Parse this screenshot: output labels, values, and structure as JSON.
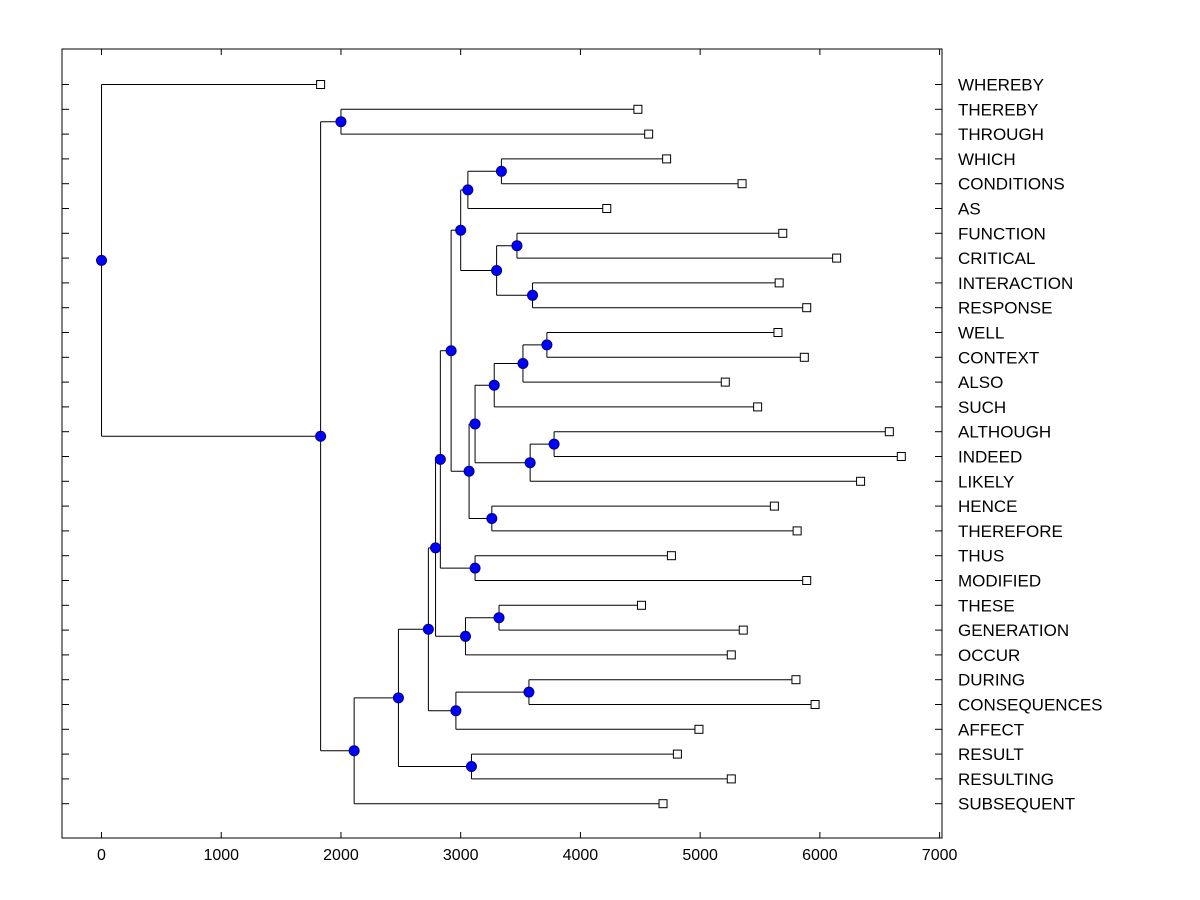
{
  "chart_data": {
    "type": "dendrogram",
    "title": "",
    "xlabel": "",
    "ylabel": "",
    "xlim": [
      -330,
      7020
    ],
    "x_ticks": [
      0,
      1000,
      2000,
      3000,
      4000,
      5000,
      6000,
      7000
    ],
    "x_tick_labels": [
      "0",
      "1000",
      "2000",
      "3000",
      "4000",
      "5000",
      "6000",
      "7000"
    ],
    "leaf_marker": "open-square",
    "node_marker": "blue-circle",
    "node_color": "#0000ff",
    "leaves": [
      {
        "label": "WHEREBY",
        "value": 1830
      },
      {
        "label": "THEREBY",
        "value": 4480
      },
      {
        "label": "THROUGH",
        "value": 4570
      },
      {
        "label": "WHICH",
        "value": 4720
      },
      {
        "label": "CONDITIONS",
        "value": 5350
      },
      {
        "label": "AS",
        "value": 4220
      },
      {
        "label": "FUNCTION",
        "value": 5690
      },
      {
        "label": "CRITICAL",
        "value": 6140
      },
      {
        "label": "INTERACTION",
        "value": 5660
      },
      {
        "label": "RESPONSE",
        "value": 5890
      },
      {
        "label": "WELL",
        "value": 5650
      },
      {
        "label": "CONTEXT",
        "value": 5870
      },
      {
        "label": "ALSO",
        "value": 5210
      },
      {
        "label": "SUCH",
        "value": 5480
      },
      {
        "label": "ALTHOUGH",
        "value": 6580
      },
      {
        "label": "INDEED",
        "value": 6680
      },
      {
        "label": "LIKELY",
        "value": 6340
      },
      {
        "label": "HENCE",
        "value": 5620
      },
      {
        "label": "THEREFORE",
        "value": 5810
      },
      {
        "label": "THUS",
        "value": 4760
      },
      {
        "label": "MODIFIED",
        "value": 5890
      },
      {
        "label": "THESE",
        "value": 4510
      },
      {
        "label": "GENERATION",
        "value": 5360
      },
      {
        "label": "OCCUR",
        "value": 5260
      },
      {
        "label": "DURING",
        "value": 5800
      },
      {
        "label": "CONSEQUENCES",
        "value": 5960
      },
      {
        "label": "AFFECT",
        "value": 4990
      },
      {
        "label": "RESULT",
        "value": 4810
      },
      {
        "label": "RESULTING",
        "value": 5260
      },
      {
        "label": "SUBSEQUENT",
        "value": 4690
      }
    ],
    "merges": [
      {
        "id": "n1",
        "value": 2000,
        "children": [
          "L1",
          "L2"
        ]
      },
      {
        "id": "n2",
        "value": 3340,
        "children": [
          "L3",
          "L4"
        ]
      },
      {
        "id": "n3",
        "value": 3060,
        "children": [
          "n2",
          "L5"
        ]
      },
      {
        "id": "n4",
        "value": 3470,
        "children": [
          "L6",
          "L7"
        ]
      },
      {
        "id": "n5",
        "value": 3600,
        "children": [
          "L8",
          "L9"
        ]
      },
      {
        "id": "n6",
        "value": 3300,
        "children": [
          "n4",
          "n5"
        ]
      },
      {
        "id": "n7",
        "value": 3000,
        "children": [
          "n3",
          "n6"
        ]
      },
      {
        "id": "n8",
        "value": 3720,
        "children": [
          "L10",
          "L11"
        ]
      },
      {
        "id": "n9",
        "value": 3520,
        "children": [
          "n8",
          "L12"
        ]
      },
      {
        "id": "n10",
        "value": 3280,
        "children": [
          "n9",
          "L13"
        ]
      },
      {
        "id": "n11",
        "value": 3780,
        "children": [
          "L14",
          "L15"
        ]
      },
      {
        "id": "n12",
        "value": 3580,
        "children": [
          "n11",
          "L16"
        ]
      },
      {
        "id": "n13",
        "value": 3120,
        "children": [
          "n10",
          "n12"
        ]
      },
      {
        "id": "n14",
        "value": 3260,
        "children": [
          "L17",
          "L18"
        ]
      },
      {
        "id": "n15",
        "value": 3070,
        "children": [
          "n13",
          "n14"
        ]
      },
      {
        "id": "n16",
        "value": 2920,
        "children": [
          "n7",
          "n15"
        ]
      },
      {
        "id": "n17",
        "value": 3120,
        "children": [
          "L19",
          "L20"
        ]
      },
      {
        "id": "n18",
        "value": 2830,
        "children": [
          "n16",
          "n17"
        ]
      },
      {
        "id": "n19",
        "value": 3320,
        "children": [
          "L21",
          "L22"
        ]
      },
      {
        "id": "n20",
        "value": 3040,
        "children": [
          "n19",
          "L23"
        ]
      },
      {
        "id": "n21",
        "value": 2790,
        "children": [
          "n18",
          "n20"
        ]
      },
      {
        "id": "n22",
        "value": 3570,
        "children": [
          "L24",
          "L25"
        ]
      },
      {
        "id": "n23",
        "value": 2960,
        "children": [
          "n22",
          "L26"
        ]
      },
      {
        "id": "n24",
        "value": 2730,
        "children": [
          "n21",
          "n23"
        ]
      },
      {
        "id": "n25",
        "value": 3090,
        "children": [
          "L27",
          "L28"
        ]
      },
      {
        "id": "n26",
        "value": 2480,
        "children": [
          "n24",
          "n25"
        ]
      },
      {
        "id": "n27",
        "value": 2110,
        "children": [
          "n26",
          "L29"
        ]
      },
      {
        "id": "n28",
        "value": 1830,
        "children": [
          "n1",
          "n27"
        ]
      },
      {
        "id": "n29",
        "value": 0,
        "children": [
          "L0",
          "n28"
        ]
      }
    ],
    "grid": false,
    "legend": "none"
  }
}
